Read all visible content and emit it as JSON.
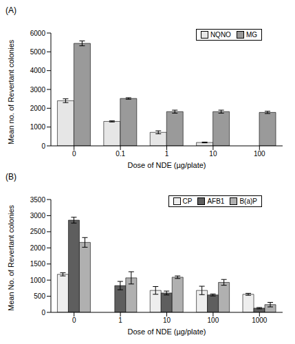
{
  "chart_data": [
    {
      "type": "bar",
      "title": "(A)",
      "x_label": "Dose of NDE (µg/plate)",
      "y_label": "Mean no. of Revertant colonies",
      "categories": [
        "0",
        "0.1",
        "1",
        "10",
        "100"
      ],
      "series": [
        {
          "name": "NQNO",
          "color": "#e6e6e6",
          "values": [
            2400,
            1300,
            720,
            180,
            null
          ],
          "errors": [
            100,
            30,
            80,
            20,
            null
          ]
        },
        {
          "name": "MG",
          "color": "#9a9a9a",
          "values": [
            5450,
            2520,
            1820,
            1820,
            1780
          ],
          "errors": [
            130,
            40,
            80,
            80,
            60
          ]
        }
      ],
      "ylim": [
        0,
        6000
      ],
      "yticks": [
        0,
        1000,
        2000,
        3000,
        4000,
        5000,
        6000
      ],
      "legend": "upper right"
    },
    {
      "type": "bar",
      "title": "(B)",
      "x_label": "Dose of NDE (µg/plate)",
      "y_label": "Mean No. of Revertant colonies",
      "categories": [
        "0",
        "1",
        "10",
        "100",
        "1000"
      ],
      "series": [
        {
          "name": "CP",
          "color": "#eeeeee",
          "values": [
            1180,
            null,
            680,
            680,
            560
          ],
          "errors": [
            50,
            null,
            120,
            130,
            30
          ]
        },
        {
          "name": "AFB1",
          "color": "#5e5e5e",
          "values": [
            2860,
            830,
            600,
            540,
            130
          ],
          "errors": [
            90,
            130,
            60,
            30,
            20
          ]
        },
        {
          "name": "B(a)P",
          "color": "#b0b0b0",
          "values": [
            2170,
            1070,
            1090,
            930,
            240
          ],
          "errors": [
            150,
            190,
            40,
            90,
            70
          ]
        }
      ],
      "ylim": [
        0,
        3500
      ],
      "yticks": [
        0,
        500,
        1000,
        1500,
        2000,
        2500,
        3000,
        3500
      ],
      "legend": "upper right"
    }
  ]
}
